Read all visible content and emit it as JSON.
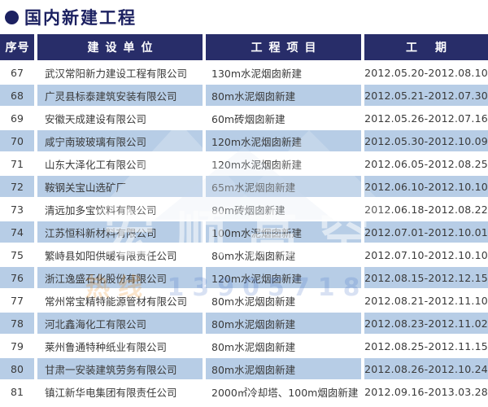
{
  "header": {
    "title": "国内新建工程"
  },
  "table": {
    "columns": [
      "序号",
      "建设单位",
      "工程项目",
      "工期"
    ],
    "rows": [
      {
        "no": "67",
        "company": "武汉常阳新力建设工程有限公司",
        "project": "130m水泥烟囱新建",
        "period": "2012.05.20-2012.08.10"
      },
      {
        "no": "68",
        "company": "广灵县标泰建筑安装有限公司",
        "project": "80m水泥烟囱新建",
        "period": "2012.05.21-2012.07.30"
      },
      {
        "no": "69",
        "company": "安徽天成建设有限公司",
        "project": "60m砖烟囱新建",
        "period": "2012.05.26-2012.07.16"
      },
      {
        "no": "70",
        "company": "咸宁南玻玻璃有限公司",
        "project": "120m水泥烟囱新建",
        "period": "2012.05.30-2012.10.09"
      },
      {
        "no": "71",
        "company": "山东大泽化工有限公司",
        "project": "120m水泥烟囱新建",
        "period": "2012.06.05-2012.08.25"
      },
      {
        "no": "72",
        "company": "鞍钢关宝山选矿厂",
        "project": "65m水泥烟囱新建",
        "period": "2012.06.10-2012.10.10"
      },
      {
        "no": "73",
        "company": "清远加多宝饮料有限公司",
        "project": "80m砖烟囱新建",
        "period": "2012.06.18-2012.08.22"
      },
      {
        "no": "74",
        "company": "江苏恒科新材料有限公司",
        "project": "100m水泥烟囱新建",
        "period": "2012.07.01-2012.10.01"
      },
      {
        "no": "75",
        "company": "繁峙县如阳供暖有限责任公司",
        "project": "80m水泥烟囱新建",
        "period": "2012.07.10-2012.10.10"
      },
      {
        "no": "76",
        "company": "浙江逸盛石化股份有限公司",
        "project": "120m水泥烟囱新建",
        "period": "2012.08.15-2012.12.15"
      },
      {
        "no": "77",
        "company": "常州常宝精特能源管材有限公司",
        "project": "80m水泥烟囱新建",
        "period": "2012.08.21-2012.11.10"
      },
      {
        "no": "78",
        "company": "河北鑫海化工有限公司",
        "project": "80m水泥烟囱新建",
        "period": "2012.08.23-2012.11.02"
      },
      {
        "no": "79",
        "company": "莱州鲁通特种纸业有限公司",
        "project": "80m水泥烟囱新建",
        "period": "2012.08.25-2012.11.15"
      },
      {
        "no": "80",
        "company": "甘肃一安装建筑劳务有限公司",
        "project": "80m水泥烟囱新建",
        "period": "2012.08.26-2012.10.24"
      },
      {
        "no": "81",
        "company": "镇江新华电集团有限责任公司",
        "project": "2000㎡冷却塔、100m烟囱新建",
        "period": "2012.09.16-2013.03.28"
      }
    ]
  },
  "watermark": {
    "center_text": "宏顺高空",
    "hotline_label": "热线",
    "hotline_number": "13905718"
  },
  "colors": {
    "header_bg": "#282d69",
    "title_color": "#1c2161",
    "row_bg": "#ffffff",
    "row_alt_bg": "#b7cde6",
    "text_color": "#3a3a3a",
    "header_text": "#ffffff"
  }
}
